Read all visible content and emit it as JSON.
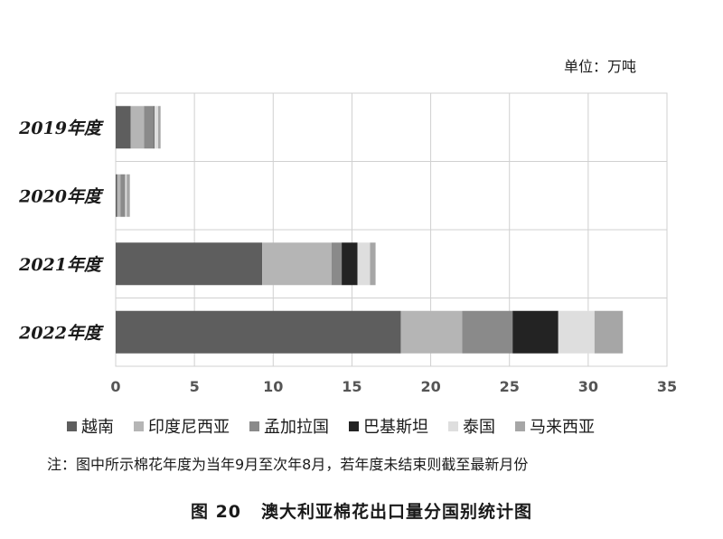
{
  "unit_label": "单位：万吨",
  "note": "注：图中所示棉花年度为当年9月至次年8月，若年度未结束则截至最新月份",
  "caption": {
    "number": "图 20",
    "title": "澳大利亚棉花出口量分国别统计图"
  },
  "chart_data": {
    "type": "bar",
    "orientation": "horizontal",
    "stacked": true,
    "categories": [
      "2019年度",
      "2020年度",
      "2021年度",
      "2022年度"
    ],
    "series": [
      {
        "name": "越南",
        "color": "#5e5e5e",
        "values": [
          0.95,
          0.1,
          9.3,
          18.1
        ]
      },
      {
        "name": "印度尼西亚",
        "color": "#b5b5b5",
        "values": [
          0.85,
          0.2,
          4.4,
          3.9
        ]
      },
      {
        "name": "孟加拉国",
        "color": "#8a8a8a",
        "values": [
          0.6,
          0.3,
          0.65,
          3.2
        ]
      },
      {
        "name": "巴基斯坦",
        "color": "#232323",
        "values": [
          0.05,
          0.0,
          1.0,
          2.9
        ]
      },
      {
        "name": "泰国",
        "color": "#dedede",
        "values": [
          0.25,
          0.1,
          0.8,
          2.3
        ]
      },
      {
        "name": "马来西亚",
        "color": "#a6a6a6",
        "values": [
          0.15,
          0.2,
          0.35,
          1.8
        ]
      }
    ],
    "xlim": [
      0,
      35
    ],
    "xticks": [
      0,
      5,
      10,
      15,
      20,
      25,
      30,
      35
    ],
    "grid": true,
    "legend_position": "bottom"
  }
}
